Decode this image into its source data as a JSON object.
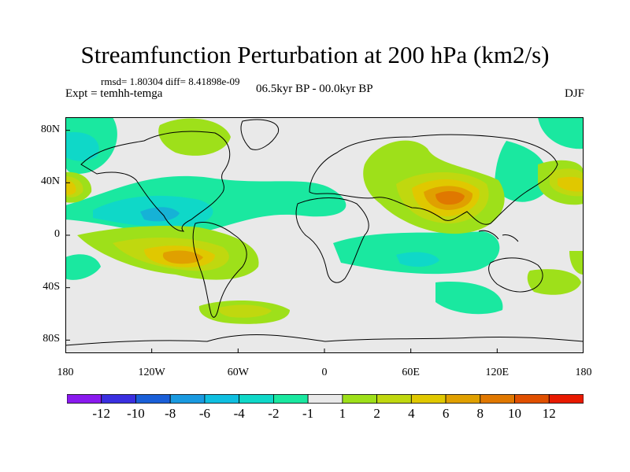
{
  "title": "Streamfunction Perturbation at 200 hPa (km2/s)",
  "subtitle_stats": "rmsd= 1.80304 diff= 8.41898e-09",
  "left_label": "Expt = temhh-temga",
  "center_label": "06.5kyr BP - 00.0kyr BP",
  "right_label": "DJF",
  "chart_data": {
    "type": "heatmap",
    "projection": "cylindrical-equidistant",
    "variable": "200 hPa streamfunction perturbation",
    "units": "km2/s",
    "lon_range": [
      -180,
      180
    ],
    "lat_range": [
      -90,
      90
    ],
    "x_ticks": [
      {
        "lon": -180,
        "label": "180"
      },
      {
        "lon": -120,
        "label": "120W"
      },
      {
        "lon": -60,
        "label": "60W"
      },
      {
        "lon": 0,
        "label": "0"
      },
      {
        "lon": 60,
        "label": "60E"
      },
      {
        "lon": 120,
        "label": "120E"
      },
      {
        "lon": 180,
        "label": "180"
      }
    ],
    "y_ticks": [
      {
        "lat": 80,
        "label": "80N"
      },
      {
        "lat": 40,
        "label": "40N"
      },
      {
        "lat": 0,
        "label": "0"
      },
      {
        "lat": -40,
        "label": "40S"
      },
      {
        "lat": -80,
        "label": "80S"
      }
    ],
    "colorbar": {
      "colors": [
        "#8a1aef",
        "#3a2fe0",
        "#1a5fd8",
        "#1a9ae0",
        "#0fbfe0",
        "#0fd8c8",
        "#1ae8a0",
        "#e9e9e9",
        "#9ee01a",
        "#c0d80f",
        "#e0c800",
        "#e0a000",
        "#e07800",
        "#e05000",
        "#e81a00"
      ],
      "labels": [
        "-12",
        "-10",
        "-8",
        "-6",
        "-4",
        "-2",
        "-1",
        "1",
        "2",
        "4",
        "6",
        "8",
        "10",
        "12"
      ]
    },
    "features": [
      {
        "name": "Asian anticyclone",
        "lon": 90,
        "lat": 28,
        "value": 9
      },
      {
        "name": "Central Asia positive",
        "lon": 55,
        "lat": 45,
        "value": 3
      },
      {
        "name": "South Pacific positive",
        "lon": -105,
        "lat": -18,
        "value": 6
      },
      {
        "name": "Hudson Bay positive",
        "lon": -80,
        "lat": 62,
        "value": 2
      },
      {
        "name": "Dateline N positive",
        "lon": -178,
        "lat": 30,
        "value": 4
      },
      {
        "name": "West Pacific positive",
        "lon": 160,
        "lat": 33,
        "value": 4
      },
      {
        "name": "Southern Atlantic positive",
        "lon": -45,
        "lat": -55,
        "value": 2
      },
      {
        "name": "Southern Indian positive",
        "lon": 145,
        "lat": -35,
        "value": 2
      },
      {
        "name": "North Pacific/Atlantic trough",
        "lon": -105,
        "lat": 12,
        "value": -4
      },
      {
        "name": "NE Pacific negative",
        "lon": -150,
        "lat": 60,
        "value": -3
      },
      {
        "name": "Tropical Indian negative",
        "lon": 80,
        "lat": -8,
        "value": -2
      },
      {
        "name": "NW Pacific negative",
        "lon": 135,
        "lat": 50,
        "value": -2
      }
    ]
  }
}
